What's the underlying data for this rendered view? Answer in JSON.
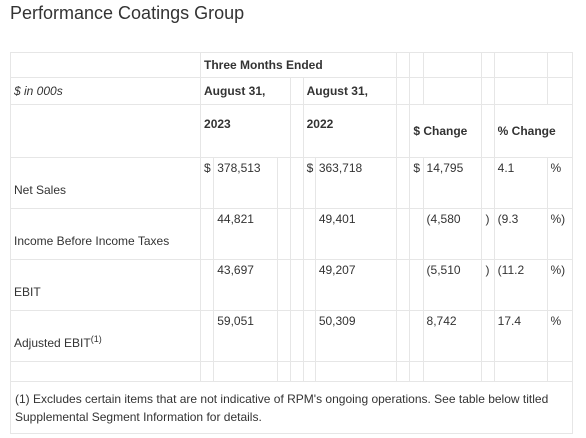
{
  "title": "Performance Coatings Group",
  "header": {
    "period": "Three Months Ended",
    "units": "$ in 000s",
    "col1_date": "August 31,",
    "col1_year": "2023",
    "col2_date": "August 31,",
    "col2_year": "2022",
    "dollar_change": "$ Change",
    "pct_change": "% Change"
  },
  "rows": [
    {
      "label": "Net Sales",
      "cur1": "$",
      "v1": "378,513",
      "cur2": "$",
      "v2": "363,718",
      "cur3": "$",
      "chg": "14,795",
      "paren": "",
      "pct": "4.1",
      "pct_sym": "%"
    },
    {
      "label": "Income Before Income Taxes",
      "cur1": "",
      "v1": "44,821",
      "cur2": "",
      "v2": "49,401",
      "cur3": "",
      "chg": "(4,580",
      "paren": ")",
      "pct": "(9.3",
      "pct_sym": "%)"
    },
    {
      "label": "EBIT",
      "cur1": "",
      "v1": "43,697",
      "cur2": "",
      "v2": "49,207",
      "cur3": "",
      "chg": "(5,510",
      "paren": ")",
      "pct": "(11.2",
      "pct_sym": "%)"
    },
    {
      "label": "Adjusted EBIT",
      "label_sup": "(1)",
      "cur1": "",
      "v1": "59,051",
      "cur2": "",
      "v2": "50,309",
      "cur3": "",
      "chg": "8,742",
      "paren": "",
      "pct": "17.4",
      "pct_sym": "%"
    }
  ],
  "footnote": "(1) Excludes certain items that are not indicative of RPM's ongoing operations. See table below titled Supplemental Segment Information for details."
}
